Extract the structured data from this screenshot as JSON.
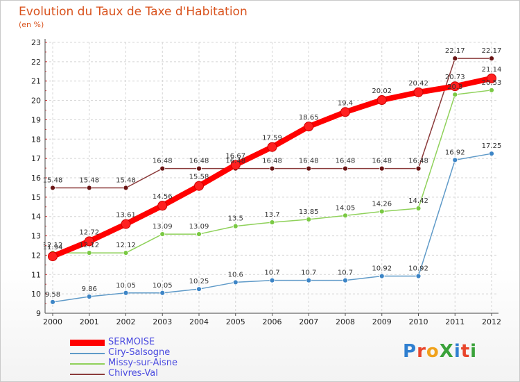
{
  "title": "Evolution du Taux de Taxe d'Habitation",
  "subtitle": "(en %)",
  "logo": {
    "text": "ProXiti",
    "letter_colors": [
      "#2f7fd0",
      "#e8452b",
      "#f0a21c",
      "#3aa23a",
      "#2f7fd0",
      "#e8452b",
      "#3aa23a"
    ]
  },
  "chart_data": {
    "type": "line",
    "title": "Evolution du Taux de Taxe d'Habitation",
    "ylabel": "(en %)",
    "x": [
      "2000",
      "2001",
      "2002",
      "2003",
      "2004",
      "2005",
      "2006",
      "2007",
      "2008",
      "2009",
      "2010",
      "2011",
      "2012"
    ],
    "ylim": [
      9,
      23
    ],
    "yticks": [
      9,
      10,
      11,
      12,
      13,
      14,
      15,
      16,
      17,
      18,
      19,
      20,
      21,
      22,
      23
    ],
    "grid": true,
    "legend_position": "bottom-left",
    "series": [
      {
        "name": "SERMOISE",
        "color": "#ff0000",
        "marker": "#ff2020",
        "values": [
          11.94,
          12.72,
          13.61,
          14.56,
          15.58,
          16.67,
          17.59,
          18.65,
          19.4,
          20.02,
          20.42,
          20.73,
          21.14
        ],
        "labels": [
          "11.94",
          "12.72",
          "13.61",
          "14.56",
          "15.58",
          "16.67",
          "17.59",
          "18.65",
          "19.4",
          "20.02",
          "20.42",
          "20.73",
          "21.14"
        ]
      },
      {
        "name": "Ciry-Salsogne",
        "color": "#5f9ac8",
        "marker": "#3d85c6",
        "values": [
          9.58,
          9.86,
          10.05,
          10.05,
          10.25,
          10.6,
          10.7,
          10.7,
          10.7,
          10.92,
          10.92,
          16.92,
          17.25
        ],
        "labels": [
          "9.58",
          "9.86",
          "10.05",
          "10.05",
          "10.25",
          "10.6",
          "10.7",
          "10.7",
          "10.7",
          "10.92",
          "10.92",
          "16.92",
          "17.25"
        ]
      },
      {
        "name": "Missy-sur-Aisne",
        "color": "#8fd15a",
        "marker": "#7ac943",
        "values": [
          12.12,
          12.12,
          12.12,
          13.09,
          13.09,
          13.5,
          13.7,
          13.85,
          14.05,
          14.26,
          14.42,
          20.3,
          20.53
        ],
        "labels": [
          "12.12",
          "12.12",
          "12.12",
          "13.09",
          "13.09",
          "13.5",
          "13.7",
          "13.85",
          "14.05",
          "14.26",
          "14.42",
          "20.3",
          "20.53"
        ]
      },
      {
        "name": "Chivres-Val",
        "color": "#8b3a3a",
        "marker": "#6b1515",
        "values": [
          15.48,
          15.48,
          15.48,
          16.48,
          16.48,
          16.48,
          16.48,
          16.48,
          16.48,
          16.48,
          16.48,
          22.17,
          22.17
        ],
        "labels": [
          "15.48",
          "15.48",
          "15.48",
          "16.48",
          "16.48",
          "16.48",
          "16.48",
          "16.48",
          "16.48",
          "16.48",
          "16.48",
          "22.17",
          "22.17"
        ]
      }
    ]
  }
}
